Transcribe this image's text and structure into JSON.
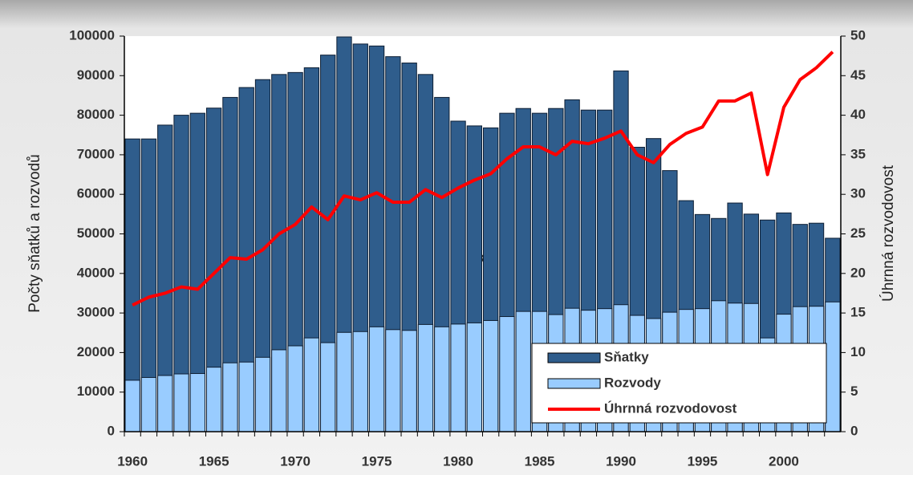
{
  "chart_data": {
    "type": "bar",
    "categories": [
      "1960",
      null,
      null,
      null,
      null,
      "1965",
      null,
      null,
      null,
      null,
      "1970",
      null,
      null,
      null,
      null,
      "1975",
      null,
      null,
      null,
      null,
      "1980",
      null,
      null,
      null,
      null,
      "1985",
      null,
      null,
      null,
      null,
      "1990",
      null,
      null,
      null,
      null,
      "1995",
      null,
      null,
      null,
      null,
      "2000",
      null,
      null,
      null
    ],
    "series": [
      {
        "name": "Sňatky",
        "type": "bar",
        "color": "#2f5d8c",
        "values": [
          74000,
          74000,
          77500,
          80000,
          80500,
          81800,
          84500,
          87000,
          89000,
          90300,
          90800,
          92000,
          95200,
          99800,
          98000,
          97500,
          94800,
          93200,
          90300,
          84500,
          78500,
          77300,
          76800,
          80500,
          81700,
          80500,
          81700,
          83900,
          81300,
          81300,
          91200,
          71900,
          74100,
          66000,
          58400,
          54900,
          53900,
          57800,
          55000,
          53500,
          55300,
          52400,
          52700,
          48900
        ]
      },
      {
        "name": "Rozvody",
        "type": "bar",
        "color": "#99ccff",
        "values": [
          13000,
          13700,
          14200,
          14600,
          14700,
          16300,
          17400,
          17600,
          18800,
          20700,
          21700,
          23700,
          22500,
          25100,
          25300,
          26500,
          25800,
          25600,
          27100,
          26500,
          27200,
          27500,
          28100,
          29100,
          30400,
          30400,
          29600,
          31200,
          30700,
          31100,
          32100,
          29400,
          28600,
          30200,
          30900,
          31100,
          33100,
          32500,
          32400,
          23700,
          29700,
          31600,
          31700,
          32800
        ]
      },
      {
        "name": "Úhrnná rozvodovost",
        "type": "line",
        "axis": "y2",
        "color": "#ff0000",
        "values": [
          16,
          17,
          17.5,
          18.3,
          18,
          20,
          22,
          21.8,
          23,
          25,
          26.2,
          28.4,
          26.8,
          29.8,
          29.3,
          30.2,
          29,
          29,
          30.6,
          29.6,
          30.8,
          31.8,
          32.6,
          34.5,
          36,
          36,
          35,
          36.7,
          36.4,
          37.1,
          38,
          35,
          34,
          36.3,
          37.7,
          38.5,
          41.8,
          41.8,
          42.8,
          32.5,
          41,
          44.5,
          46,
          48
        ]
      }
    ],
    "ylabel": "Počty sňatků a rozvodů",
    "y2label": "Úhrnná rozvodovost",
    "annotation": "k",
    "ylim": [
      0,
      100000
    ],
    "yticks": [
      0,
      10000,
      20000,
      30000,
      40000,
      50000,
      60000,
      70000,
      80000,
      90000,
      100000
    ],
    "y2lim": [
      0,
      50
    ],
    "y2ticks": [
      0,
      5,
      10,
      15,
      20,
      25,
      30,
      35,
      40,
      45,
      50
    ],
    "grid": false,
    "legend": "lower right"
  }
}
